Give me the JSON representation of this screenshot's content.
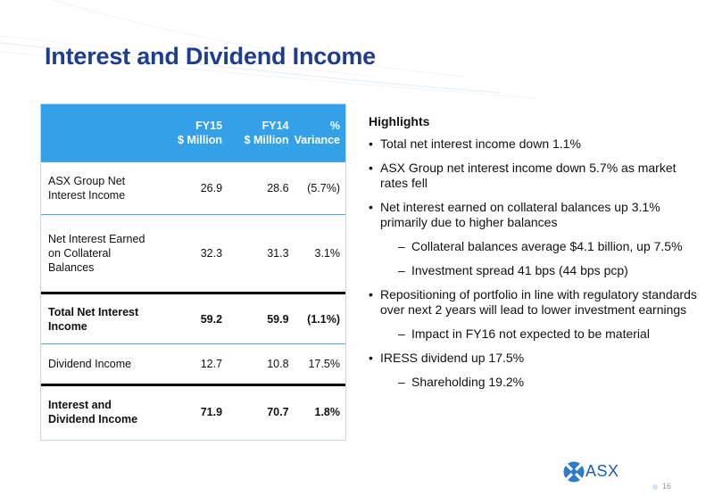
{
  "title": "Interest and Dividend Income",
  "table": {
    "headers": [
      "",
      "FY15\n$ Million",
      "FY14\n$ Million",
      "%\nVariance"
    ],
    "rows": [
      {
        "label": "ASX Group Net Interest Income",
        "fy15": "26.9",
        "fy14": "28.6",
        "variance": "(5.7%)"
      },
      {
        "label": "Net Interest Earned on Collateral Balances",
        "fy15": "32.3",
        "fy14": "31.3",
        "variance": "3.1%"
      },
      {
        "label": "Total Net Interest Income",
        "fy15": "59.2",
        "fy14": "59.9",
        "variance": "(1.1%)"
      },
      {
        "label": "Dividend Income",
        "fy15": "12.7",
        "fy14": "10.8",
        "variance": "17.5%"
      },
      {
        "label": "Interest and Dividend Income",
        "fy15": "71.9",
        "fy14": "70.7",
        "variance": "1.8%"
      }
    ]
  },
  "highlights": {
    "title": "Highlights",
    "bullet1": "Total net interest income down 1.1%",
    "bullet2": "ASX Group net interest income down 5.7% as market rates fell",
    "bullet3": "Net interest earned on collateral balances up 3.1% primarily due to higher balances",
    "sub3a": "Collateral balances average $4.1 billion, up 7.5%",
    "sub3b": "Investment spread 41 bps (44 bps pcp)",
    "bullet4": "Repositioning of portfolio in line with regulatory standards over next 2 years will lead to lower investment earnings",
    "sub4a": "Impact in FY16 not expected to be material",
    "bullet5": "IRESS dividend up 17.5%",
    "sub5a": "Shareholding 19.2%"
  },
  "footer": {
    "logo_text": "ASX",
    "page_number": "16"
  },
  "colors": {
    "title": "#1f3d8c",
    "table_header": "#33a0e8",
    "logo": "#1f5fa8"
  }
}
